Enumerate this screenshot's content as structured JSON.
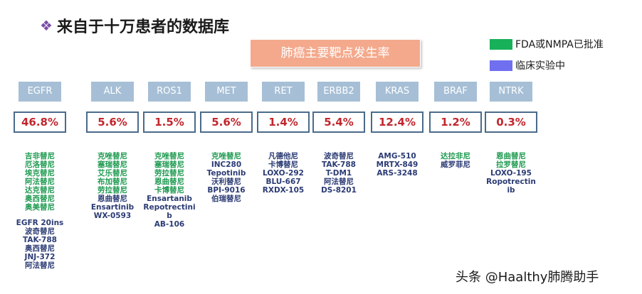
{
  "header": {
    "bullet": "❖",
    "title": "来自于十万患者的数据库"
  },
  "center_label": "肺癌主要靶点发生率",
  "legend": [
    {
      "label": "FDA或NMPA已批准",
      "color": "#17b15a"
    },
    {
      "label": "临床实验中",
      "color": "#6f6ff0"
    }
  ],
  "colors": {
    "approved": "#1e9a50",
    "clinical": "#2b3b74",
    "rate": "#c1272d",
    "gene_box": "#a6bfd6"
  },
  "targets": [
    {
      "name": "EGFR",
      "rate": "46.8%",
      "drugs": [
        {
          "t": "吉非替尼",
          "s": "approved"
        },
        {
          "t": "厄洛替尼",
          "s": "approved"
        },
        {
          "t": "埃克替尼",
          "s": "approved"
        },
        {
          "t": "阿法替尼",
          "s": "approved"
        },
        {
          "t": "达克替尼",
          "s": "approved"
        },
        {
          "t": "奥西替尼",
          "s": "approved"
        },
        {
          "t": "奥美替尼",
          "s": "approved"
        },
        {
          "gap": true
        },
        {
          "t": "EGFR 20ins",
          "s": "clinical"
        },
        {
          "t": "波奇替尼",
          "s": "clinical"
        },
        {
          "t": "TAK-788",
          "s": "clinical"
        },
        {
          "t": "奥西替尼",
          "s": "clinical"
        },
        {
          "t": "JNJ-372",
          "s": "clinical"
        },
        {
          "t": "阿法替尼",
          "s": "clinical"
        }
      ]
    },
    {
      "name": "ALK",
      "rate": "5.6%",
      "drugs": [
        {
          "t": "克唑替尼",
          "s": "approved"
        },
        {
          "t": "塞瑞替尼",
          "s": "approved"
        },
        {
          "t": "艾乐替尼",
          "s": "approved"
        },
        {
          "t": "布加替尼",
          "s": "approved"
        },
        {
          "t": "劳拉替尼",
          "s": "approved"
        },
        {
          "t": "恩曲替尼",
          "s": "clinical"
        },
        {
          "t": "Ensartinib",
          "s": "clinical"
        },
        {
          "t": "WX-0593",
          "s": "clinical"
        }
      ]
    },
    {
      "name": "ROS1",
      "rate": "1.5%",
      "drugs": [
        {
          "t": "克唑替尼",
          "s": "approved"
        },
        {
          "t": "塞瑞替尼",
          "s": "approved"
        },
        {
          "t": "劳拉替尼",
          "s": "approved"
        },
        {
          "t": "恩曲替尼",
          "s": "approved"
        },
        {
          "t": "卡博替尼",
          "s": "approved"
        },
        {
          "t": "Ensartanib",
          "s": "clinical"
        },
        {
          "t": "Repotrectini",
          "s": "clinical"
        },
        {
          "t": "b",
          "s": "clinical"
        },
        {
          "t": "AB-106",
          "s": "clinical"
        }
      ]
    },
    {
      "name": "MET",
      "rate": "5.6%",
      "drugs": [
        {
          "t": "克唑替尼",
          "s": "approved"
        },
        {
          "t": "INC280",
          "s": "clinical"
        },
        {
          "t": "Tepotinib",
          "s": "clinical"
        },
        {
          "t": "沃利替尼",
          "s": "clinical"
        },
        {
          "t": "BPI-9016",
          "s": "clinical"
        },
        {
          "t": "伯瑞替尼",
          "s": "clinical"
        }
      ]
    },
    {
      "name": "RET",
      "rate": "1.4%",
      "drugs": [
        {
          "t": "凡德他尼",
          "s": "clinical"
        },
        {
          "t": "卡博替尼",
          "s": "clinical"
        },
        {
          "t": "LOXO-292",
          "s": "clinical"
        },
        {
          "t": "BLU-667",
          "s": "clinical"
        },
        {
          "t": "RXDX-105",
          "s": "clinical"
        }
      ]
    },
    {
      "name": "ERBB2",
      "rate": "5.4%",
      "drugs": [
        {
          "t": "波奇替尼",
          "s": "clinical"
        },
        {
          "t": "TAK-788",
          "s": "clinical"
        },
        {
          "t": "T-DM1",
          "s": "clinical"
        },
        {
          "t": "阿法替尼",
          "s": "clinical"
        },
        {
          "t": "DS-8201",
          "s": "clinical"
        }
      ]
    },
    {
      "name": "KRAS",
      "rate": "12.4%",
      "drugs": [
        {
          "t": "AMG-510",
          "s": "clinical"
        },
        {
          "t": "MRTX-849",
          "s": "clinical"
        },
        {
          "t": "ARS-3248",
          "s": "clinical"
        }
      ]
    },
    {
      "name": "BRAF",
      "rate": "1.2%",
      "drugs": [
        {
          "t": "达拉非尼",
          "s": "approved"
        },
        {
          "t": "威罗菲尼",
          "s": "clinical"
        }
      ]
    },
    {
      "name": "NTRK",
      "rate": "0.3%",
      "drugs": [
        {
          "t": "恩曲替尼",
          "s": "approved"
        },
        {
          "t": "拉罗替尼",
          "s": "approved"
        },
        {
          "t": "LOXO-195",
          "s": "clinical"
        },
        {
          "t": "Ropotrectin",
          "s": "clinical"
        },
        {
          "t": "ib",
          "s": "clinical"
        }
      ]
    }
  ],
  "watermark": "头条 @Haalthy肺腾助手"
}
